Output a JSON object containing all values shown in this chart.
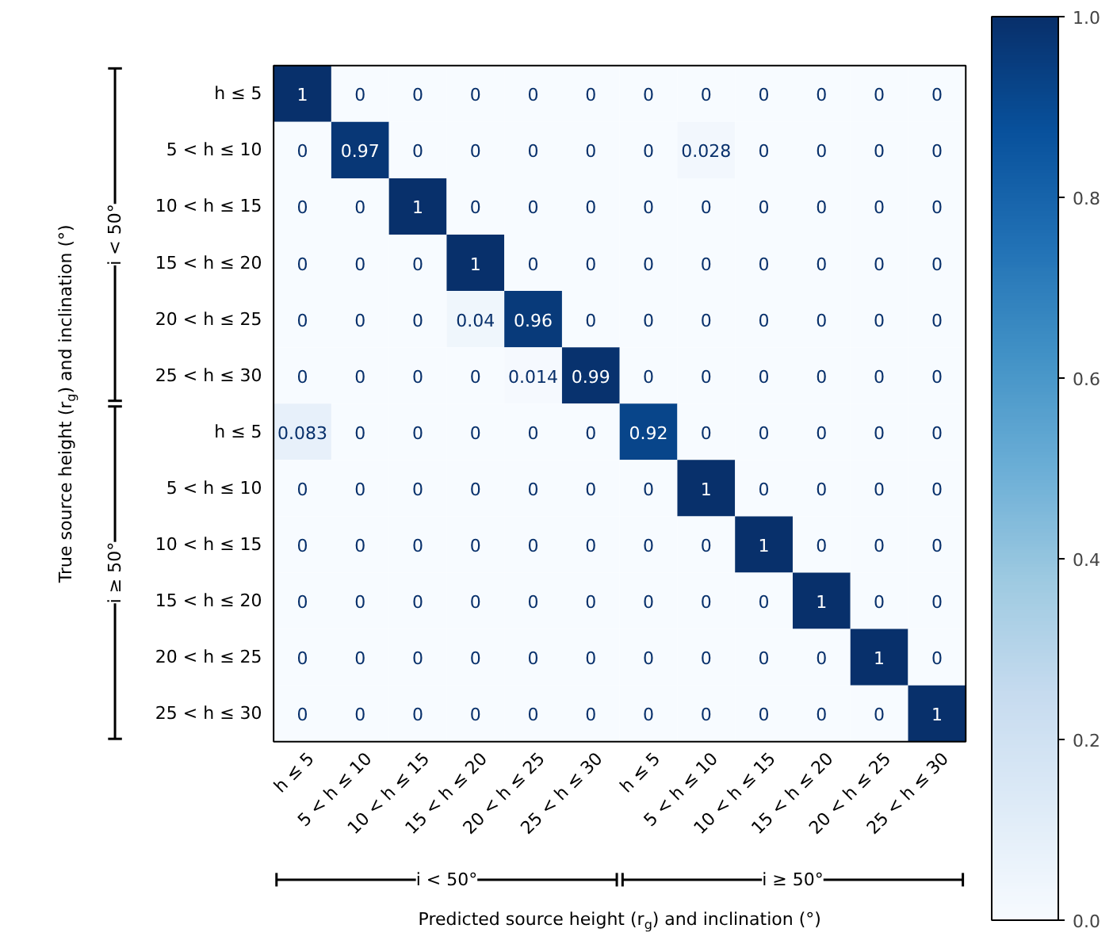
{
  "chart_data": {
    "type": "heatmap",
    "xlabel": "Predicted source height (r$_{g}$) and inclination (°)",
    "ylabel": "True source height (r$_{g}$) and inclination (°)",
    "categories": [
      "h ≤ 5",
      "5 < h ≤ 10",
      "10 < h ≤ 15",
      "15 < h ≤ 20",
      "20 < h ≤ 25",
      "25 < h ≤ 30",
      "h ≤ 5",
      "5 < h ≤ 10",
      "10 < h ≤ 15",
      "15 < h ≤ 20",
      "20 < h ≤ 25",
      "25 < h ≤ 30"
    ],
    "y_categories": [
      "h ≤ 5",
      "5 < h ≤ 10",
      "10 < h ≤ 15",
      "15 < h ≤ 20",
      "20 < h ≤ 25",
      "25 < h ≤ 30",
      "h ≤ 5",
      "5 < h ≤ 10",
      "10 < h ≤ 15",
      "15 < h ≤ 20",
      "20 < h ≤ 25",
      "25 < h ≤ 30"
    ],
    "cells": [
      [
        1,
        0,
        0,
        0,
        0,
        0,
        0,
        0,
        0,
        0,
        0,
        0
      ],
      [
        0,
        0.97,
        0,
        0,
        0,
        0,
        0,
        0.028,
        0,
        0,
        0,
        0
      ],
      [
        0,
        0,
        1,
        0,
        0,
        0,
        0,
        0,
        0,
        0,
        0,
        0
      ],
      [
        0,
        0,
        0,
        1,
        0,
        0,
        0,
        0,
        0,
        0,
        0,
        0
      ],
      [
        0,
        0,
        0,
        0.04,
        0.96,
        0,
        0,
        0,
        0,
        0,
        0,
        0
      ],
      [
        0,
        0,
        0,
        0,
        0.014,
        0.99,
        0,
        0,
        0,
        0,
        0,
        0
      ],
      [
        0.083,
        0,
        0,
        0,
        0,
        0,
        0.92,
        0,
        0,
        0,
        0,
        0
      ],
      [
        0,
        0,
        0,
        0,
        0,
        0,
        0,
        1,
        0,
        0,
        0,
        0
      ],
      [
        0,
        0,
        0,
        0,
        0,
        0,
        0,
        0,
        1,
        0,
        0,
        0
      ],
      [
        0,
        0,
        0,
        0,
        0,
        0,
        0,
        0,
        0,
        1,
        0,
        0
      ],
      [
        0,
        0,
        0,
        0,
        0,
        0,
        0,
        0,
        0,
        0,
        1,
        0
      ],
      [
        0,
        0,
        0,
        0,
        0,
        0,
        0,
        0,
        0,
        0,
        0,
        1
      ]
    ],
    "data_labels": true,
    "clim": [
      0,
      1
    ],
    "cticks": [
      {
        "value": 0,
        "label": "0.0"
      },
      0.2,
      0.4,
      0.6,
      0.8,
      {
        "value": 1,
        "label": "1.0"
      }
    ],
    "annotations": [
      "i < 50°",
      "i ≥ 50°",
      "i < 50°",
      "i ≥ 50°"
    ]
  }
}
